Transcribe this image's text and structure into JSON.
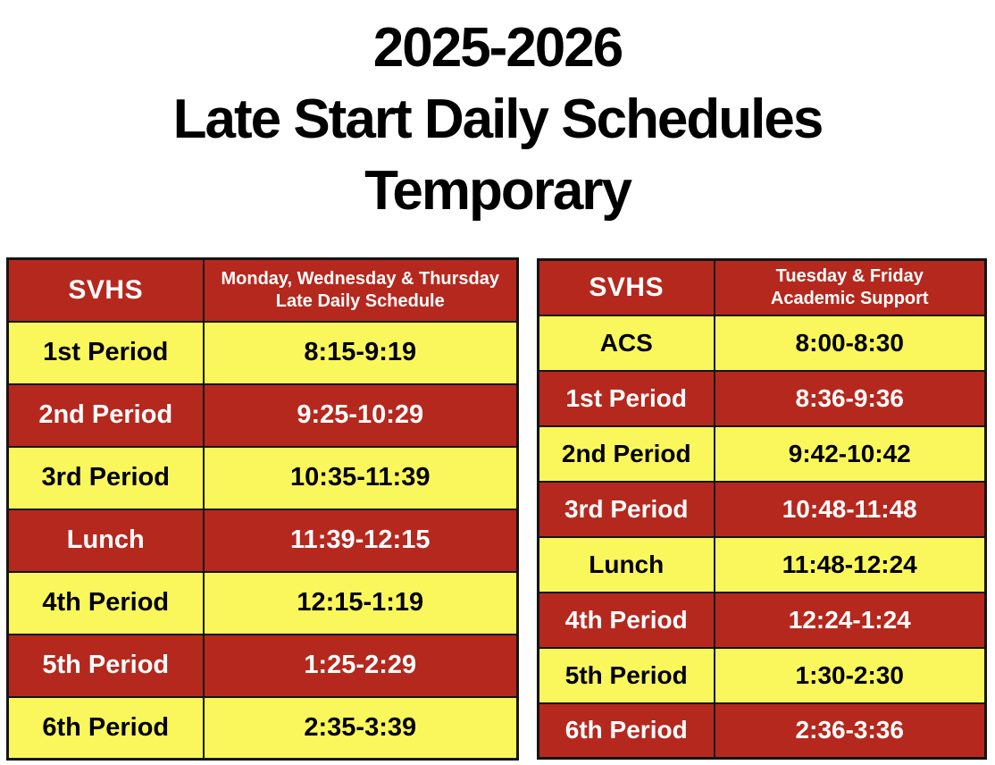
{
  "page": {
    "title_lines": [
      "2025-2026",
      "Late Start Daily Schedules",
      "Temporary"
    ]
  },
  "colors": {
    "red": "#B5281E",
    "yellow": "#FAF75C",
    "header_text": "#FFFFFF",
    "red_row_text": "#FFFFFF",
    "yellow_row_text": "#000000",
    "border": "#141414",
    "title_text": "#000000",
    "page_background": "#FFFFFF"
  },
  "tables": [
    {
      "name": "monday-wednesday-thursday-late-daily-schedule",
      "header": {
        "school": "SVHS",
        "schedule_lines": [
          "Monday, Wednesday & Thursday",
          "Late Daily Schedule"
        ]
      },
      "rows": [
        {
          "label": "1st Period",
          "time": "8:15-9:19",
          "variant": "yellow"
        },
        {
          "label": "2nd Period",
          "time": "9:25-10:29",
          "variant": "red"
        },
        {
          "label": "3rd Period",
          "time": "10:35-11:39",
          "variant": "yellow"
        },
        {
          "label": "Lunch",
          "time": "11:39-12:15",
          "variant": "red"
        },
        {
          "label": "4th Period",
          "time": "12:15-1:19",
          "variant": "yellow"
        },
        {
          "label": "5th Period",
          "time": "1:25-2:29",
          "variant": "red"
        },
        {
          "label": "6th Period",
          "time": "2:35-3:39",
          "variant": "yellow"
        }
      ]
    },
    {
      "name": "tuesday-friday-academic-support",
      "header": {
        "school": "SVHS",
        "schedule_lines": [
          "Tuesday & Friday",
          "Academic Support"
        ]
      },
      "rows": [
        {
          "label": "ACS",
          "time": "8:00-8:30",
          "variant": "yellow"
        },
        {
          "label": "1st Period",
          "time": "8:36-9:36",
          "variant": "red"
        },
        {
          "label": "2nd Period",
          "time": "9:42-10:42",
          "variant": "yellow"
        },
        {
          "label": "3rd Period",
          "time": "10:48-11:48",
          "variant": "red"
        },
        {
          "label": "Lunch",
          "time": "11:48-12:24",
          "variant": "yellow"
        },
        {
          "label": "4th Period",
          "time": "12:24-1:24",
          "variant": "red"
        },
        {
          "label": "5th Period",
          "time": "1:30-2:30",
          "variant": "yellow"
        },
        {
          "label": "6th Period",
          "time": "2:36-3:36",
          "variant": "red"
        }
      ]
    }
  ]
}
